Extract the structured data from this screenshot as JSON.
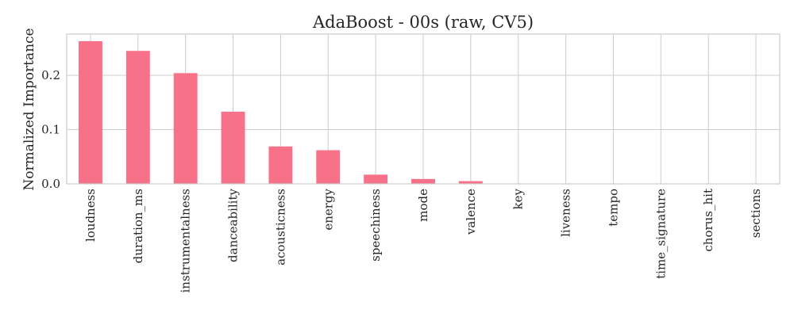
{
  "chart_data": {
    "type": "bar",
    "title": "AdaBoost - 00s (raw, CV5)",
    "xlabel": "",
    "ylabel": "Normalized Importance",
    "categories": [
      "loudness",
      "duration_ms",
      "instrumentalness",
      "danceability",
      "acousticness",
      "energy",
      "speechiness",
      "mode",
      "valence",
      "key",
      "liveness",
      "tempo",
      "time_signature",
      "chorus_hit",
      "sections"
    ],
    "values": [
      0.263,
      0.245,
      0.204,
      0.133,
      0.069,
      0.062,
      0.017,
      0.009,
      0.005,
      0,
      0,
      0,
      0,
      0,
      0
    ],
    "yticks": [
      0.0,
      0.1,
      0.2
    ],
    "ytick_labels": [
      "0.0",
      "0.1",
      "0.2"
    ],
    "ylim": [
      0,
      0.276
    ],
    "grid": true,
    "bar_color": "#f77189"
  }
}
